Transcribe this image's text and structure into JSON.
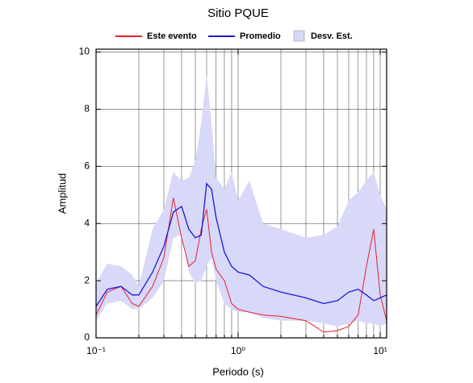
{
  "chart_data": {
    "type": "line",
    "title": "Sitio PQUE",
    "xlabel": "Periodo (s)",
    "ylabel": "Amplitud",
    "xscale": "log",
    "xlim": [
      0.1,
      11.1
    ],
    "ylim": [
      0,
      10.1
    ],
    "xticks": [
      {
        "value": 0.1,
        "label": "10⁻¹"
      },
      {
        "value": 1,
        "label": "10⁰"
      },
      {
        "value": 10,
        "label": "10¹"
      }
    ],
    "xminor": [
      0.2,
      0.3,
      0.4,
      0.5,
      0.6,
      0.7,
      0.8,
      0.9,
      2,
      3,
      4,
      5,
      6,
      7,
      8,
      9
    ],
    "yticks": [
      0,
      2,
      4,
      6,
      8,
      10
    ],
    "grid": true,
    "legend": "top",
    "x": [
      0.1,
      0.12,
      0.15,
      0.18,
      0.2,
      0.25,
      0.3,
      0.35,
      0.4,
      0.45,
      0.5,
      0.55,
      0.6,
      0.65,
      0.7,
      0.8,
      0.9,
      1,
      1.2,
      1.5,
      2,
      3,
      4,
      5,
      6,
      7,
      8,
      9,
      10,
      11.1
    ],
    "series": [
      {
        "name": "Este evento",
        "color": "#e8202a",
        "values": [
          0.8,
          1.6,
          1.8,
          1.2,
          1.1,
          1.8,
          2.8,
          4.9,
          3.5,
          2.5,
          2.7,
          3.8,
          4.5,
          3.0,
          2.4,
          2.0,
          1.2,
          1.0,
          0.9,
          0.8,
          0.75,
          0.6,
          0.2,
          0.25,
          0.4,
          0.8,
          2.5,
          3.8,
          1.5,
          0.6
        ]
      },
      {
        "name": "Promedio",
        "color": "#1a1ad6",
        "values": [
          1.1,
          1.7,
          1.8,
          1.5,
          1.5,
          2.3,
          3.2,
          4.4,
          4.6,
          3.8,
          3.5,
          3.6,
          5.4,
          5.2,
          4.2,
          3.0,
          2.5,
          2.3,
          2.2,
          1.8,
          1.6,
          1.4,
          1.2,
          1.3,
          1.6,
          1.7,
          1.5,
          1.3,
          1.4,
          1.5
        ]
      },
      {
        "name": "Desv. Est.",
        "color": "#d8d8f8",
        "band": true,
        "upper": [
          1.9,
          2.6,
          2.5,
          2.2,
          1.8,
          3.8,
          4.5,
          5.8,
          5.5,
          5.6,
          6.2,
          7.5,
          9.2,
          7.5,
          5.6,
          5.2,
          5.8,
          4.8,
          5.5,
          4.0,
          3.8,
          3.5,
          3.6,
          3.9,
          4.8,
          5.1,
          5.5,
          5.8,
          5.0,
          4.5
        ],
        "lower": [
          0.6,
          1.2,
          1.3,
          1.0,
          1.0,
          1.4,
          2.0,
          3.5,
          3.6,
          2.3,
          1.9,
          2.0,
          2.5,
          2.8,
          2.0,
          1.2,
          1.0,
          0.9,
          0.9,
          0.7,
          0.6,
          0.6,
          0.5,
          0.4,
          0.5,
          0.6,
          0.5,
          0.5,
          0.4,
          0.5
        ]
      }
    ]
  }
}
